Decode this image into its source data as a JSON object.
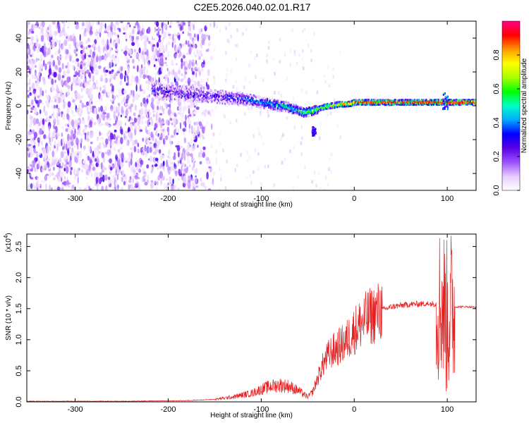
{
  "title": "C2E5.2026.040.02.01.R17",
  "chart_data": [
    {
      "type": "heatmap",
      "title": "C2E5.2026.040.02.01.R17",
      "xlabel": "Height of straight line (km)",
      "ylabel": "Frequency (Hz)",
      "xlim": [
        -352,
        131
      ],
      "ylim": [
        -50,
        50
      ],
      "xticks": [
        -300,
        -200,
        -100,
        0,
        100
      ],
      "yticks": [
        -40,
        -20,
        0,
        20,
        40
      ],
      "xtick_labels": [
        "-300",
        "-200",
        "-100",
        "0",
        "100"
      ],
      "ytick_labels": [
        "-40",
        "-20",
        "0",
        "20",
        "40"
      ],
      "colorbar": {
        "label": "Normalized spectral amplitude",
        "range": [
          0,
          1
        ],
        "ticks": [
          0.0,
          0.2,
          0.4,
          0.6,
          0.8
        ],
        "tick_labels": [
          "0.0",
          "0.2",
          "0.4",
          "0.6",
          "0.8"
        ],
        "colormap": [
          "#ffffff",
          "#e6ccff",
          "#9b50ff",
          "#5a00e6",
          "#0000ff",
          "#00aaff",
          "#00ffc8",
          "#00ff00",
          "#aaff00",
          "#ffff00",
          "#ff9900",
          "#ff0000",
          "#ff0088"
        ]
      },
      "ridge": {
        "x": [
          -215,
          -200,
          -180,
          -160,
          -140,
          -120,
          -100,
          -80,
          -65,
          -55,
          -45,
          -35,
          -25,
          -15,
          -5,
          0,
          20,
          50,
          80,
          100,
          131
        ],
        "y": [
          9,
          8,
          7,
          6,
          5,
          4,
          2,
          0,
          -2,
          -4,
          -3,
          -1,
          0,
          1,
          1,
          2,
          2,
          2,
          2,
          2,
          2
        ]
      }
    },
    {
      "type": "line",
      "xlabel": "Height of straight line (km)",
      "ylabel": "SNR (10 * v/v)",
      "y_multiplier": "(x10",
      "y_multiplier_exp": "4",
      "xlim": [
        -352,
        131
      ],
      "ylim": [
        0,
        2.7
      ],
      "xticks": [
        -300,
        -200,
        -100,
        0,
        100
      ],
      "yticks": [
        0.0,
        0.5,
        1.0,
        1.5,
        2.0,
        2.5
      ],
      "xtick_labels": [
        "-300",
        "-200",
        "-100",
        "0",
        "100"
      ],
      "ytick_labels": [
        "0.0",
        "0.5",
        "1.0",
        "1.5",
        "2.0",
        "2.5"
      ],
      "color": "#e62020",
      "envelope": {
        "x": [
          -352,
          -250,
          -180,
          -150,
          -130,
          -110,
          -100,
          -90,
          -80,
          -70,
          -60,
          -50,
          -45,
          -40,
          -35,
          -30,
          -25,
          -20,
          -15,
          -10,
          -5,
          0,
          10,
          20,
          30,
          40,
          60,
          80,
          90,
          95,
          100,
          103,
          106,
          110,
          120,
          131
        ],
        "y": [
          0.01,
          0.01,
          0.02,
          0.04,
          0.08,
          0.14,
          0.2,
          0.25,
          0.27,
          0.25,
          0.18,
          0.08,
          0.15,
          0.35,
          0.55,
          0.7,
          0.8,
          0.85,
          0.9,
          0.95,
          1.05,
          1.15,
          1.3,
          1.4,
          1.48,
          1.53,
          1.57,
          1.58,
          1.58,
          1.6,
          1.3,
          1.5,
          1.52,
          1.53,
          1.53,
          1.52
        ]
      }
    }
  ]
}
